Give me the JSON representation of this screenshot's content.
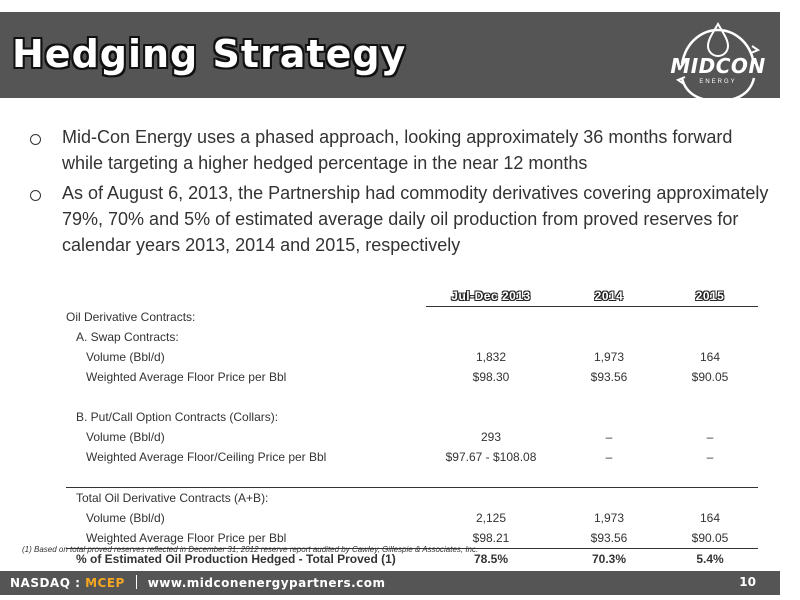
{
  "header": {
    "title": "Hedging Strategy",
    "logo": {
      "name": "MIDCON",
      "sub": "ENERGY"
    }
  },
  "bullets": [
    {
      "text": "Mid-Con Energy uses a phased approach, looking approximately 36 months forward while targeting a higher hedged percentage in the near 12 months"
    },
    {
      "text": "As of August 6, 2013, the Partnership had commodity derivatives covering approximately 79%, 70% and 5% of estimated average daily oil production from proved reserves for calendar years 2013, 2014 and 2015, respectively"
    }
  ],
  "table": {
    "columns": [
      "Jul-Dec 2013",
      "2014",
      "2015"
    ],
    "section_title": "Oil Derivative Contracts:",
    "swap": {
      "label": "A. Swap Contracts:",
      "rows": [
        {
          "label": "Volume (Bbl/d)",
          "values": [
            "1,832",
            "1,973",
            "164"
          ]
        },
        {
          "label": "Weighted Average Floor Price per Bbl",
          "values": [
            "$98.30",
            "$93.56",
            "$90.05"
          ]
        }
      ]
    },
    "collars": {
      "label": "B. Put/Call Option Contracts (Collars):",
      "rows": [
        {
          "label": "Volume (Bbl/d)",
          "values": [
            "293",
            "–",
            "–"
          ]
        },
        {
          "label": "Weighted Average Floor/Ceiling Price per Bbl",
          "values": [
            "$97.67 - $108.08",
            "–",
            "–"
          ]
        }
      ]
    },
    "total": {
      "label": "Total Oil Derivative Contracts (A+B):",
      "rows": [
        {
          "label": "Volume (Bbl/d)",
          "values": [
            "2,125",
            "1,973",
            "164"
          ]
        },
        {
          "label": "Weighted Average Floor Price per Bbl",
          "values": [
            "$98.21",
            "$93.56",
            "$90.05"
          ]
        }
      ]
    },
    "hedged": {
      "label": "% of Estimated Oil Production Hedged - Total Proved (1)",
      "values": [
        "78.5%",
        "70.3%",
        "5.4%"
      ]
    }
  },
  "footnote": "(1)   Based on total proved reserves reflected in December 31, 2012 reserve report audited by Cawley, Gillespie & Associates, Inc.",
  "footer": {
    "exchange": "NASDAQ :",
    "ticker": "MCEP",
    "website": "www.midconenergypartners.com",
    "page_number": "10"
  },
  "colors": {
    "header_bg": "#555555",
    "ticker": "#f5a623"
  }
}
